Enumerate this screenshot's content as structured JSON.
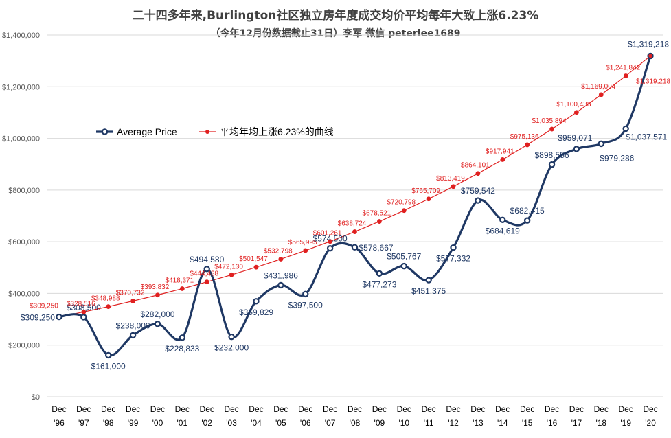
{
  "title": "二十四多年来,Burlington社区独立房年度成交均价平均每年大致上涨6.23%",
  "subtitle": "（今年12月份数据截止31日）李军 微信 peterlee1689",
  "colors": {
    "average": "#1f3864",
    "trend": "#e02020",
    "grid": "#d9d9d9"
  },
  "chart_data": {
    "type": "line",
    "title": "二十四多年来,Burlington社区独立房年度成交均价平均每年大致上涨6.23%",
    "subtitle": "（今年12月份数据截止31日）李军 微信 peterlee1689",
    "categories": [
      [
        "Dec",
        "'96"
      ],
      [
        "Dec",
        "'97"
      ],
      [
        "Dec",
        "'98"
      ],
      [
        "Dec",
        "'99"
      ],
      [
        "Dec",
        "'00"
      ],
      [
        "Dec",
        "'01"
      ],
      [
        "Dec",
        "'02"
      ],
      [
        "Dec",
        "'03"
      ],
      [
        "Dec",
        "'04"
      ],
      [
        "Dec",
        "'05"
      ],
      [
        "Dec",
        "'06"
      ],
      [
        "Dec",
        "'07"
      ],
      [
        "Dec",
        "'08"
      ],
      [
        "Dec",
        "'09"
      ],
      [
        "Dec",
        "'10"
      ],
      [
        "Dec",
        "'11"
      ],
      [
        "Dec",
        "'12"
      ],
      [
        "Dec",
        "'13"
      ],
      [
        "Dec",
        "'14"
      ],
      [
        "Dec",
        "'15"
      ],
      [
        "Dec",
        "'16"
      ],
      [
        "Dec",
        "'17"
      ],
      [
        "Dec",
        "'18"
      ],
      [
        "Dec",
        "'19"
      ],
      [
        "Dec",
        "'20"
      ]
    ],
    "ylim": [
      0,
      1400000
    ],
    "yticks": [
      0,
      200000,
      400000,
      600000,
      800000,
      1000000,
      1200000,
      1400000
    ],
    "ytick_labels": [
      "$0",
      "$200,000",
      "$400,000",
      "$600,000",
      "$800,000",
      "$1,000,000",
      "$1,200,000",
      "$1,400,000"
    ],
    "grid": true,
    "legend_position": "left-middle",
    "series": [
      {
        "name": "Average Price",
        "style": "smooth",
        "values": [
          309250,
          308500,
          161000,
          238000,
          282000,
          228833,
          494580,
          232000,
          369829,
          431986,
          397500,
          574500,
          578667,
          477273,
          505767,
          451375,
          577332,
          759542,
          684619,
          682415,
          898556,
          959071,
          979286,
          1037571,
          1319218
        ],
        "labels": [
          "$309,250",
          "$308,500",
          "$161,000",
          "$238,000",
          "$282,000",
          "$228,833",
          "$494,580",
          "$232,000",
          "$369,829",
          "$431,986",
          "$397,500",
          "$574,500",
          "$578,667",
          "$477,273",
          "$505,767",
          "$451,375",
          "$577,332",
          "$759,542",
          "$684,619",
          "$682,415",
          "$898,556",
          "$959,071",
          "$979,286",
          "$1,037,571",
          "$1,319,218"
        ]
      },
      {
        "name": "平均年均上涨6.23%的曲线",
        "style": "straight",
        "values": [
          309250,
          328516,
          348988,
          370732,
          393832,
          418371,
          444438,
          472130,
          501547,
          532798,
          565995,
          601261,
          638724,
          678521,
          720798,
          765709,
          813419,
          864101,
          917941,
          975136,
          1035894,
          1100438,
          1169004,
          1241842,
          1319218
        ],
        "labels": [
          "$309,250",
          "$328,516",
          "$348,988",
          "$370,732",
          "$393,832",
          "$418,371",
          "$444,438",
          "$472,130",
          "$501,547",
          "$532,798",
          "$565,995",
          "$601,261",
          "$638,724",
          "$678,521",
          "$720,798",
          "$765,709",
          "$813,419",
          "$864,101",
          "$917,941",
          "$975,136",
          "$1,035,894",
          "$1,100,438",
          "$1,169,004",
          "$1,241,842",
          "$1,319,218"
        ]
      }
    ]
  }
}
